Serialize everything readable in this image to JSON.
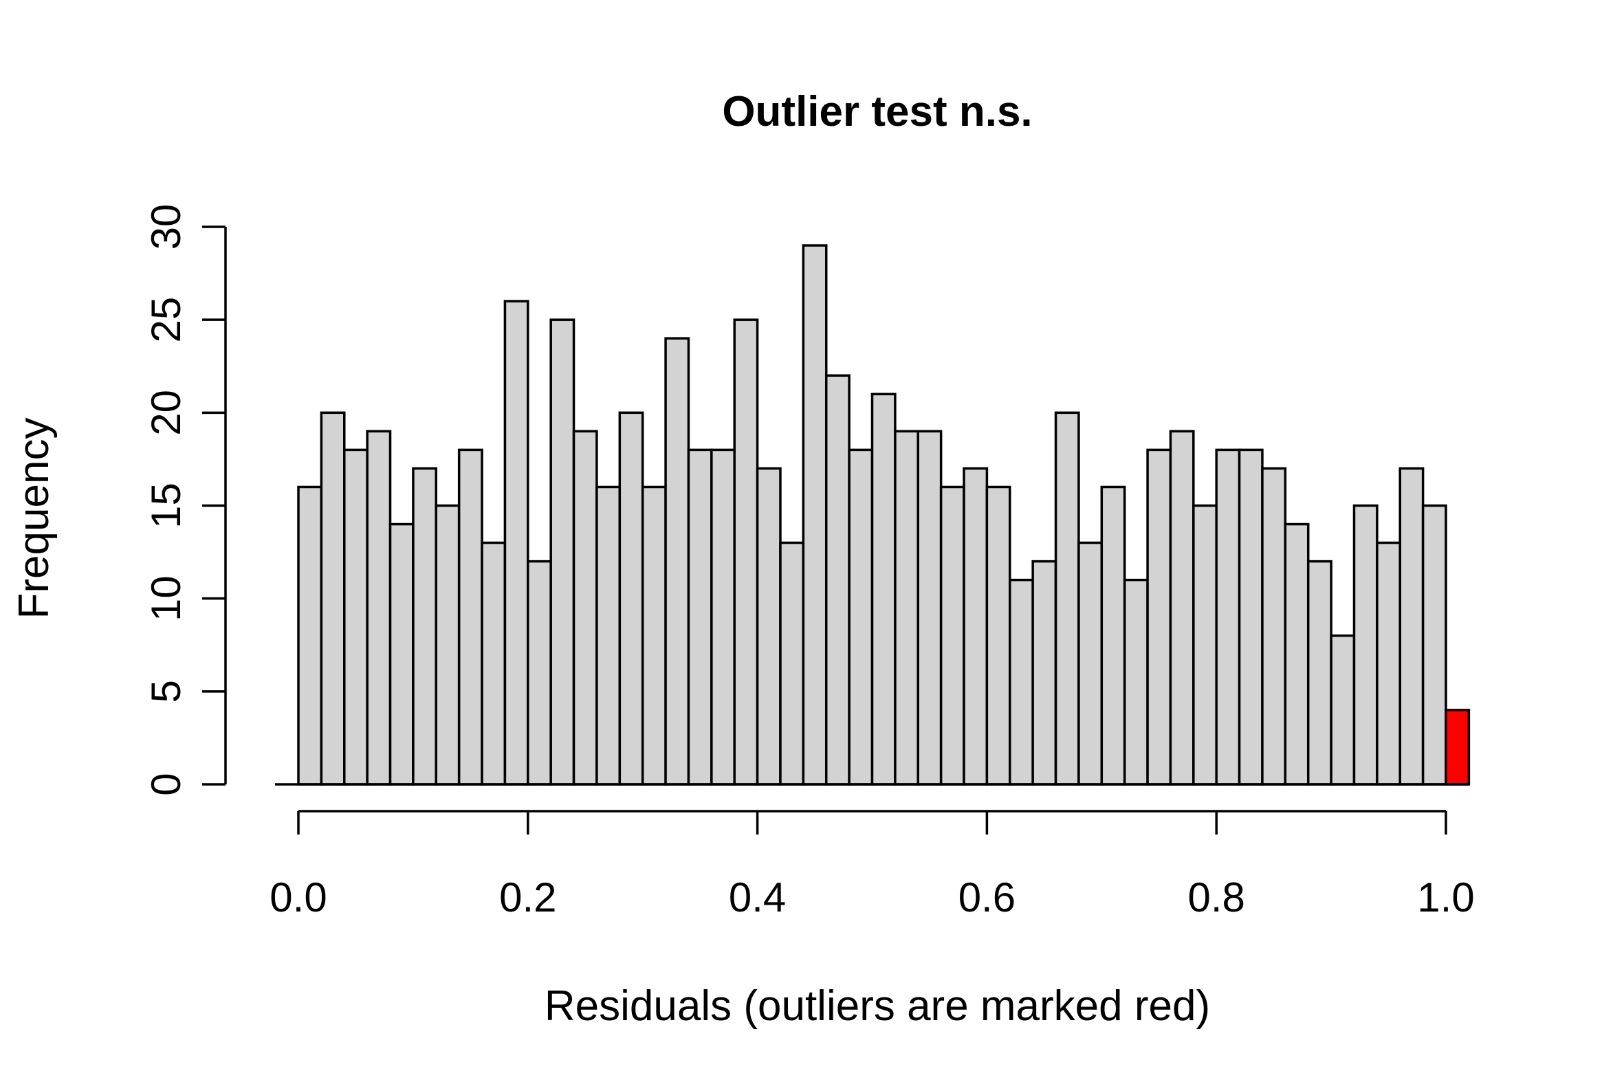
{
  "chart_data": {
    "type": "bar",
    "title": "Outlier test n.s.",
    "xlabel": "Residuals (outliers are marked red)",
    "ylabel": "Frequency",
    "xlim": [
      -0.02,
      1.02
    ],
    "ylim": [
      0,
      30
    ],
    "x_ticks": [
      "0.0",
      "0.2",
      "0.4",
      "0.6",
      "0.8",
      "1.0"
    ],
    "x_tick_values": [
      0.0,
      0.2,
      0.4,
      0.6,
      0.8,
      1.0
    ],
    "y_ticks": [
      "0",
      "5",
      "10",
      "15",
      "20",
      "25",
      "30"
    ],
    "y_tick_values": [
      0,
      5,
      10,
      15,
      20,
      25,
      30
    ],
    "bin_width": 0.02,
    "bins": [
      {
        "start": 0.0,
        "value": 16
      },
      {
        "start": 0.02,
        "value": 20
      },
      {
        "start": 0.04,
        "value": 18
      },
      {
        "start": 0.06,
        "value": 19
      },
      {
        "start": 0.08,
        "value": 14
      },
      {
        "start": 0.1,
        "value": 17
      },
      {
        "start": 0.12,
        "value": 15
      },
      {
        "start": 0.14,
        "value": 18
      },
      {
        "start": 0.16,
        "value": 13
      },
      {
        "start": 0.18,
        "value": 26
      },
      {
        "start": 0.2,
        "value": 12
      },
      {
        "start": 0.22,
        "value": 25
      },
      {
        "start": 0.24,
        "value": 19
      },
      {
        "start": 0.26,
        "value": 16
      },
      {
        "start": 0.28,
        "value": 20
      },
      {
        "start": 0.3,
        "value": 16
      },
      {
        "start": 0.32,
        "value": 24
      },
      {
        "start": 0.34,
        "value": 18
      },
      {
        "start": 0.36,
        "value": 18
      },
      {
        "start": 0.38,
        "value": 25
      },
      {
        "start": 0.4,
        "value": 17
      },
      {
        "start": 0.42,
        "value": 13
      },
      {
        "start": 0.44,
        "value": 29
      },
      {
        "start": 0.46,
        "value": 22
      },
      {
        "start": 0.48,
        "value": 18
      },
      {
        "start": 0.5,
        "value": 21
      },
      {
        "start": 0.52,
        "value": 19
      },
      {
        "start": 0.54,
        "value": 19
      },
      {
        "start": 0.56,
        "value": 16
      },
      {
        "start": 0.58,
        "value": 17
      },
      {
        "start": 0.6,
        "value": 16
      },
      {
        "start": 0.62,
        "value": 11
      },
      {
        "start": 0.64,
        "value": 12
      },
      {
        "start": 0.66,
        "value": 20
      },
      {
        "start": 0.68,
        "value": 13
      },
      {
        "start": 0.7,
        "value": 16
      },
      {
        "start": 0.72,
        "value": 11
      },
      {
        "start": 0.74,
        "value": 18
      },
      {
        "start": 0.76,
        "value": 19
      },
      {
        "start": 0.78,
        "value": 15
      },
      {
        "start": 0.8,
        "value": 18
      },
      {
        "start": 0.82,
        "value": 18
      },
      {
        "start": 0.84,
        "value": 17
      },
      {
        "start": 0.86,
        "value": 14
      },
      {
        "start": 0.88,
        "value": 12
      },
      {
        "start": 0.9,
        "value": 8
      },
      {
        "start": 0.92,
        "value": 15
      },
      {
        "start": 0.94,
        "value": 13
      },
      {
        "start": 0.96,
        "value": 17
      },
      {
        "start": 0.98,
        "value": 15
      }
    ],
    "outlier_bins": [
      {
        "start": 1.0,
        "value": 4
      }
    ],
    "colors": {
      "bar_fill": "#d3d3d3",
      "outlier_fill": "#ff0000",
      "stroke": "#000000"
    },
    "grid": false
  }
}
